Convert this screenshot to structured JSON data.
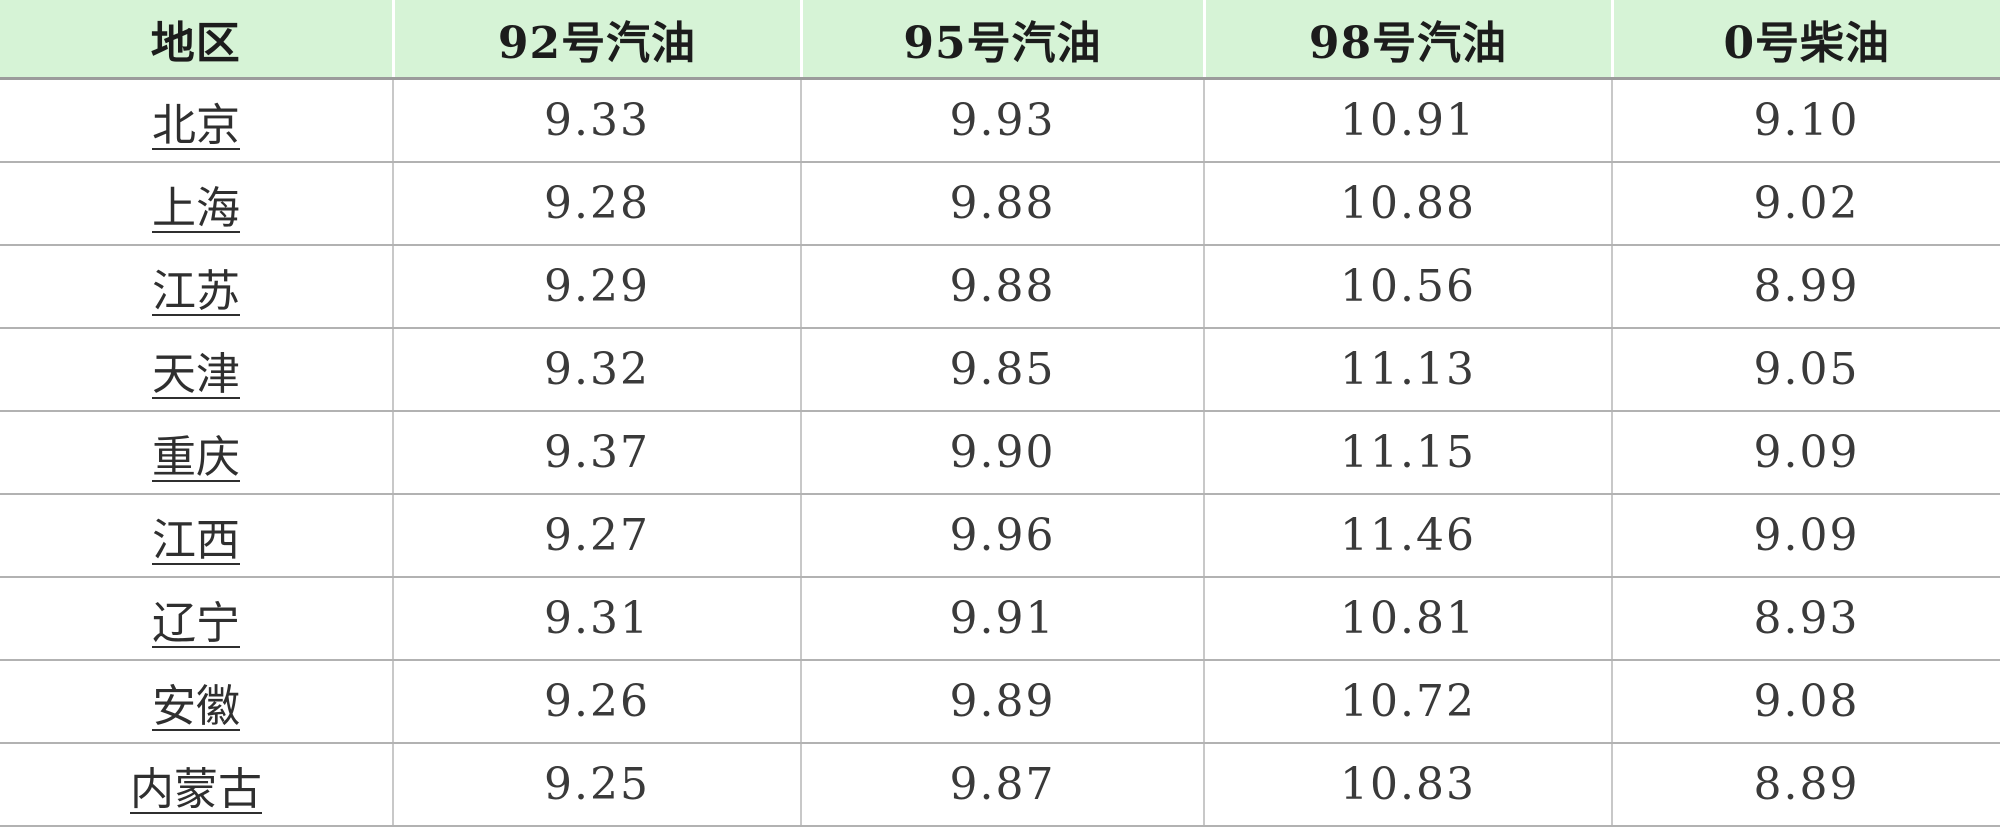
{
  "table": {
    "columns": [
      "地区",
      "92号汽油",
      "95号汽油",
      "98号汽油",
      "0号柴油"
    ],
    "rows": [
      {
        "region": "北京",
        "values": [
          "9.33",
          "9.93",
          "10.91",
          "9.10"
        ]
      },
      {
        "region": "上海",
        "values": [
          "9.28",
          "9.88",
          "10.88",
          "9.02"
        ]
      },
      {
        "region": "江苏",
        "values": [
          "9.29",
          "9.88",
          "10.56",
          "8.99"
        ]
      },
      {
        "region": "天津",
        "values": [
          "9.32",
          "9.85",
          "11.13",
          "9.05"
        ]
      },
      {
        "region": "重庆",
        "values": [
          "9.37",
          "9.90",
          "11.15",
          "9.09"
        ]
      },
      {
        "region": "江西",
        "values": [
          "9.27",
          "9.96",
          "11.46",
          "9.09"
        ]
      },
      {
        "region": "辽宁",
        "values": [
          "9.31",
          "9.91",
          "10.81",
          "8.93"
        ]
      },
      {
        "region": "安徽",
        "values": [
          "9.26",
          "9.89",
          "10.72",
          "9.08"
        ]
      },
      {
        "region": "内蒙古",
        "values": [
          "9.25",
          "9.87",
          "10.83",
          "8.89"
        ]
      }
    ]
  },
  "colors": {
    "header_bg": "#d6f3d6",
    "header_text": "#1c1c1c",
    "body_text": "#3a3a3a",
    "row_divider": "#b2b2b2",
    "column_divider": "#c8c8c8",
    "header_divider": "#9b9b9b"
  }
}
